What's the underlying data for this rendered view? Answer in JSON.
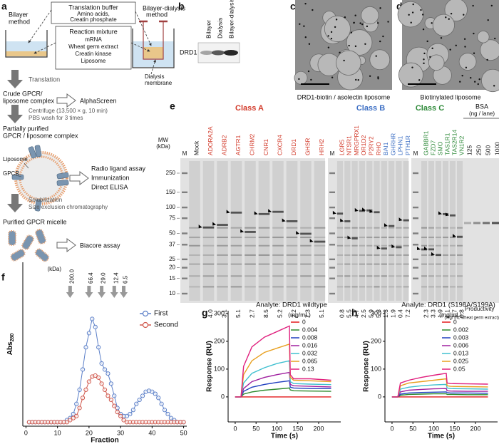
{
  "panels": [
    "a",
    "b",
    "c",
    "d",
    "e",
    "f",
    "g",
    "h"
  ],
  "a": {
    "bilayer_method": [
      "Bilayer",
      "method"
    ],
    "translation_buffer": "Translation buffer",
    "buffer_contents": [
      "Amino acids,",
      "Creatin phosphate"
    ],
    "reaction_mixture": "Reaction mixture",
    "mixture_contents": [
      "mRNA",
      "Wheat germ extract",
      "Creatin kinase",
      "Liposome"
    ],
    "bilayer_dialysis_method": [
      "Bilayer-dialysis",
      "method"
    ],
    "dialysis_membrane": [
      "Dialysis",
      "membrane"
    ],
    "translation": "Translation",
    "crude": [
      "Crude GPCR/",
      "liposome complex"
    ],
    "alphascreen": "AlphaScreen",
    "centrifuge": [
      "Centrifuge (13,500 × g, 10 min)",
      "PBS wash for 3 times"
    ],
    "partially_purified": [
      "Partially purified",
      "GPCR / liposome complex"
    ],
    "liposome": "Liposome",
    "gpcr": "GPCR",
    "assays": [
      "Radio ligand assay",
      "Immunization",
      "Direct ELISA"
    ],
    "solubilization": [
      "Solubilization",
      "Size exclusion chromatography"
    ],
    "purified": "Purified GPCR micelle",
    "biacore": "Biacore assay"
  },
  "b": {
    "lanes": [
      "Bilayer",
      "Dialysis",
      "Bilayer-dialysis"
    ],
    "protein": "DRD1"
  },
  "c": {
    "caption": "DRD1-biotin / asolectin liposome"
  },
  "d": {
    "caption": "Biotinylated liposome"
  },
  "e": {
    "mw_label": [
      "MW",
      "(kDa)"
    ],
    "marker_lane": "M",
    "mw": [
      250,
      150,
      100,
      75,
      50,
      37,
      25,
      20,
      15,
      10
    ],
    "classes": [
      {
        "name": "Class A",
        "color": "#d23a2a"
      },
      {
        "name": "Class B",
        "color": "#3d6fc4"
      },
      {
        "name": "Class C",
        "color": "#2f8a3a"
      }
    ],
    "gels": [
      {
        "lanes": [
          {
            "name": "Mock",
            "class": null,
            "productivity": null
          },
          {
            "name": "ADORA2A",
            "class": 0,
            "productivity": "4.0"
          },
          {
            "name": "ADRB2",
            "class": 0,
            "productivity": "3.1"
          },
          {
            "name": "AGTR1",
            "class": 0,
            "productivity": "5.1"
          },
          {
            "name": "CHRM2",
            "class": 0,
            "productivity": "2.7"
          },
          {
            "name": "CNR1",
            "class": 0,
            "productivity": "8.5"
          },
          {
            "name": "CXCR4",
            "class": 0,
            "productivity": "5.2"
          },
          {
            "name": "DRD1",
            "class": 0,
            "productivity": "2.2"
          },
          {
            "name": "GHSR",
            "class": 0,
            "productivity": "7.3"
          },
          {
            "name": "HRH2",
            "class": 0,
            "productivity": "5.1"
          }
        ]
      },
      {
        "lanes": [
          {
            "name": "LGR5",
            "class": 0,
            "productivity": "0.8"
          },
          {
            "name": "NTSR1",
            "class": 0,
            "productivity": "5.5"
          },
          {
            "name": "MRGPRX1",
            "class": 0,
            "productivity": "4.7"
          },
          {
            "name": "OR1D2",
            "class": 0,
            "productivity": "2.5"
          },
          {
            "name": "P2RY2",
            "class": 0,
            "productivity": "5.9"
          },
          {
            "name": "RHO",
            "class": 0,
            "productivity": "5.3"
          },
          {
            "name": "BAI1",
            "class": 1,
            "productivity": "1.3"
          },
          {
            "name": "GHRHR",
            "class": 1,
            "productivity": "1.9"
          },
          {
            "name": "LPHN1",
            "class": 1,
            "productivity": "0.4"
          },
          {
            "name": "PTH1R",
            "class": 1,
            "productivity": "7.2"
          }
        ]
      },
      {
        "lanes": [
          {
            "name": "GABBR1",
            "class": 2,
            "productivity": "2.3"
          },
          {
            "name": "FZD7",
            "class": 2,
            "productivity": "3.3"
          },
          {
            "name": "SMO",
            "class": 2,
            "productivity": "1.9"
          },
          {
            "name": "TAS1R1",
            "class": 2,
            "productivity": "1.1"
          },
          {
            "name": "TAS2R14",
            "class": 2,
            "productivity": "1.7"
          },
          {
            "name": "VN1R2",
            "class": 2,
            "productivity": "0.8"
          }
        ]
      }
    ],
    "bsa": {
      "label": [
        "BSA",
        "(ng / lane)"
      ],
      "amounts": [
        125,
        250,
        500,
        1000
      ]
    },
    "productivity_label": [
      "Productivity",
      "(mg/ mL wheat germ extract)"
    ]
  },
  "chart_data": [
    {
      "type": "line",
      "marker": "circle",
      "xlabel": "Fraction",
      "ylabel": "Abs",
      "ylabel_sub": "280",
      "xlim": [
        -1,
        51
      ],
      "ylim": [
        -0.01,
        0.8
      ],
      "xticks": [
        0,
        10,
        20,
        30,
        40,
        50
      ],
      "legend": "upper right",
      "size_markers": {
        "unit": "(kDa)",
        "items": [
          {
            "x": 14,
            "label": "200.0"
          },
          {
            "x": 20,
            "label": "66.4"
          },
          {
            "x": 24,
            "label": "29.0"
          },
          {
            "x": 28,
            "label": "12.4"
          },
          {
            "x": 31,
            "label": "6.5"
          }
        ]
      },
      "x": [
        1,
        2,
        3,
        4,
        5,
        6,
        7,
        8,
        9,
        10,
        11,
        12,
        13,
        14,
        15,
        16,
        17,
        18,
        19,
        20,
        21,
        22,
        23,
        24,
        25,
        26,
        27,
        28,
        29,
        30,
        31,
        32,
        33,
        34,
        35,
        36,
        37,
        38,
        39,
        40,
        41,
        42,
        43,
        44,
        45,
        46,
        47,
        48,
        49,
        50
      ],
      "series": [
        {
          "name": "First",
          "color": "#5b7fc8",
          "values": [
            0.01,
            0.01,
            0.01,
            0.01,
            0.01,
            0.01,
            0.01,
            0.01,
            0.01,
            0.01,
            0.01,
            0.01,
            0.02,
            0.03,
            0.05,
            0.1,
            0.17,
            0.27,
            0.38,
            0.45,
            0.52,
            0.48,
            0.38,
            0.3,
            0.27,
            0.25,
            0.2,
            0.14,
            0.08,
            0.05,
            0.04,
            0.04,
            0.05,
            0.07,
            0.1,
            0.12,
            0.14,
            0.16,
            0.165,
            0.16,
            0.15,
            0.13,
            0.1,
            0.07,
            0.05,
            0.03,
            0.02,
            0.01,
            0.01,
            0.01
          ]
        },
        {
          "name": "Second",
          "color": "#d0584c",
          "values": [
            0.01,
            0.01,
            0.01,
            0.01,
            0.01,
            0.01,
            0.01,
            0.01,
            0.01,
            0.01,
            0.01,
            0.01,
            0.01,
            0.02,
            0.03,
            0.04,
            0.08,
            0.13,
            0.17,
            0.21,
            0.235,
            0.24,
            0.23,
            0.2,
            0.17,
            0.14,
            0.12,
            0.09,
            0.06,
            0.04,
            0.02,
            0.01,
            0.01,
            0.01,
            0.01,
            0.01,
            0.01,
            0.01,
            0.01,
            0.01,
            0.01,
            0.01,
            0.01,
            0.01,
            0.01,
            0.01,
            0.01,
            0.01,
            0.01,
            0.01
          ]
        }
      ]
    },
    {
      "type": "line",
      "title": "Analyte: DRD1 wildtype",
      "xlabel": "Time (s)",
      "ylabel": "Response (RU)",
      "legend_title": "(mg/mL)",
      "xlim": [
        -17,
        253
      ],
      "ylim": [
        -90,
        310
      ],
      "xticks": [
        0,
        50,
        100,
        150,
        200
      ],
      "yticks": [
        0,
        100,
        200,
        300
      ],
      "legend": "upper right",
      "x": [
        0,
        14,
        20,
        40,
        70,
        100,
        130,
        132,
        140,
        180,
        230
      ],
      "series": [
        {
          "name": "0",
          "color": "#e41a1c",
          "values": [
            0,
            0,
            0,
            0,
            0,
            0,
            0,
            0,
            0,
            0,
            0
          ]
        },
        {
          "name": "0.004",
          "color": "#2e8b2e",
          "values": [
            0,
            0,
            10,
            18,
            24,
            28,
            32,
            25,
            22,
            21,
            20
          ]
        },
        {
          "name": "0.008",
          "color": "#1f3fbf",
          "values": [
            0,
            0,
            20,
            35,
            45,
            52,
            58,
            35,
            32,
            30,
            30
          ]
        },
        {
          "name": "0.016",
          "color": "#a020a0",
          "values": [
            0,
            0,
            30,
            55,
            70,
            80,
            88,
            45,
            40,
            38,
            36
          ]
        },
        {
          "name": "0.032",
          "color": "#40c0d0",
          "values": [
            0,
            0,
            50,
            85,
            105,
            120,
            130,
            55,
            48,
            46,
            44
          ]
        },
        {
          "name": "0.065",
          "color": "#e8a020",
          "values": [
            0,
            0,
            80,
            130,
            160,
            175,
            190,
            70,
            60,
            58,
            55
          ]
        },
        {
          "name": "0.13",
          "color": "#e0207e",
          "values": [
            0,
            0,
            110,
            180,
            215,
            235,
            255,
            80,
            65,
            65,
            60
          ]
        }
      ]
    },
    {
      "type": "line",
      "title": "Analyte: DRD1 (S198A/S199A)",
      "xlabel": "Time (s)",
      "ylabel": "Response (RU)",
      "legend_title": "(mg/mL)",
      "xlim": [
        -17,
        253
      ],
      "ylim": [
        -90,
        310
      ],
      "xticks": [
        0,
        50,
        100,
        150,
        200
      ],
      "yticks": [
        0,
        100,
        200,
        300
      ],
      "legend": "upper right",
      "x": [
        0,
        14,
        20,
        40,
        70,
        100,
        130,
        132,
        140,
        180,
        230
      ],
      "series": [
        {
          "name": "0",
          "color": "#e41a1c",
          "values": [
            0,
            0,
            0,
            0,
            0,
            0,
            0,
            0,
            0,
            0,
            0
          ]
        },
        {
          "name": "0.002",
          "color": "#2e8b2e",
          "values": [
            0,
            0,
            6,
            9,
            10,
            11,
            11,
            9,
            9,
            8,
            8
          ]
        },
        {
          "name": "0.003",
          "color": "#1f3fbf",
          "values": [
            0,
            0,
            10,
            14,
            16,
            17,
            18,
            15,
            14,
            14,
            13
          ]
        },
        {
          "name": "0.006",
          "color": "#a020a0",
          "values": [
            0,
            0,
            18,
            24,
            27,
            29,
            30,
            22,
            21,
            20,
            20
          ]
        },
        {
          "name": "0.013",
          "color": "#40c0d0",
          "values": [
            0,
            0,
            28,
            35,
            40,
            43,
            45,
            32,
            30,
            29,
            28
          ]
        },
        {
          "name": "0.025",
          "color": "#e8a020",
          "values": [
            0,
            0,
            40,
            50,
            55,
            60,
            65,
            40,
            38,
            37,
            36
          ]
        },
        {
          "name": "0.05",
          "color": "#e0207e",
          "values": [
            0,
            0,
            50,
            60,
            70,
            78,
            85,
            50,
            48,
            47,
            46
          ]
        }
      ]
    }
  ]
}
